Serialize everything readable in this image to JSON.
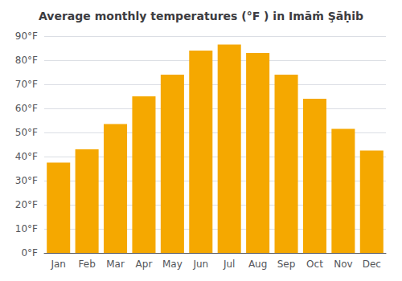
{
  "chart_data": {
    "type": "bar",
    "title": "Average monthly temperatures (°F ) in Imāṁ Şāḥib",
    "categories": [
      "Jan",
      "Feb",
      "Mar",
      "Apr",
      "May",
      "Jun",
      "Jul",
      "Aug",
      "Sep",
      "Oct",
      "Nov",
      "Dec"
    ],
    "values": [
      37.5,
      43,
      53.5,
      65,
      74,
      84,
      86.5,
      83,
      74,
      64,
      51.5,
      42.5
    ],
    "color": "#F5A800",
    "ylim": [
      0,
      90
    ],
    "yticks": [
      {
        "value": 0,
        "label": "0°F"
      },
      {
        "value": 10,
        "label": "10°F"
      },
      {
        "value": 20,
        "label": "20°F"
      },
      {
        "value": 30,
        "label": "30°F"
      },
      {
        "value": 40,
        "label": "40°F"
      },
      {
        "value": 50,
        "label": "50°F"
      },
      {
        "value": 60,
        "label": "60°F"
      },
      {
        "value": 70,
        "label": "70°F"
      },
      {
        "value": 80,
        "label": "80°F"
      },
      {
        "value": 90,
        "label": "90°F"
      }
    ],
    "grid": true
  }
}
